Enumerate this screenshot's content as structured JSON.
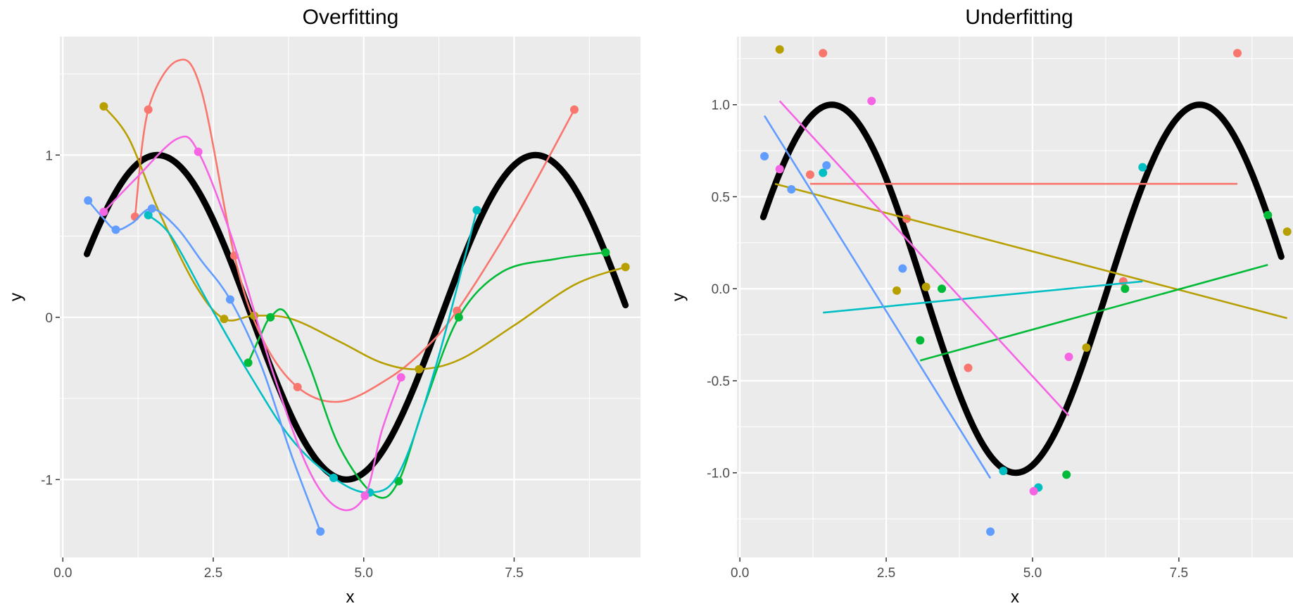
{
  "colors": {
    "panel_bg": "#EBEBEB",
    "grid": "#FFFFFF",
    "truth": "#000000",
    "series": [
      "#F8766D",
      "#B79F00",
      "#00BA38",
      "#00BFC4",
      "#619CFF",
      "#F564E3"
    ]
  },
  "chart_data": [
    {
      "type": "line",
      "title": "Overfitting",
      "xlabel": "x",
      "ylabel": "y",
      "xlim": [
        -0.05,
        9.6
      ],
      "ylim": [
        -1.48,
        1.73
      ],
      "xticks": [
        0,
        2.5,
        5,
        7.5
      ],
      "xtick_labels": [
        "0.0",
        "2.5",
        "5.0",
        "7.5"
      ],
      "yticks": [
        -1,
        0,
        1
      ],
      "ytick_labels": [
        "-1",
        "0",
        "1"
      ],
      "grid": true,
      "legend": "none",
      "truth": {
        "name": "",
        "function": "sin(x)",
        "x_range": [
          0.4,
          9.35
        ]
      },
      "series": [
        {
          "color_index": 0,
          "points": [
            [
              1.2,
              0.62
            ],
            [
              1.42,
              1.28
            ],
            [
              2.85,
              0.38
            ],
            [
              3.9,
              -0.43
            ],
            [
              6.55,
              0.04
            ],
            [
              8.5,
              1.28
            ]
          ],
          "curve": [
            [
              1.2,
              0.62
            ],
            [
              1.42,
              1.28
            ],
            [
              1.9,
              1.58
            ],
            [
              2.3,
              1.4
            ],
            [
              2.85,
              0.38
            ],
            [
              3.3,
              -0.12
            ],
            [
              3.9,
              -0.43
            ],
            [
              4.6,
              -0.52
            ],
            [
              5.4,
              -0.38
            ],
            [
              6.0,
              -0.2
            ],
            [
              6.55,
              0.04
            ],
            [
              7.5,
              0.6
            ],
            [
              8.5,
              1.28
            ]
          ]
        },
        {
          "color_index": 1,
          "points": [
            [
              0.68,
              1.3
            ],
            [
              2.68,
              -0.01
            ],
            [
              3.18,
              0.01
            ],
            [
              5.92,
              -0.32
            ],
            [
              9.35,
              0.31
            ]
          ],
          "curve": [
            [
              0.68,
              1.3
            ],
            [
              1.1,
              1.1
            ],
            [
              1.6,
              0.65
            ],
            [
              2.2,
              0.2
            ],
            [
              2.68,
              -0.01
            ],
            [
              3.18,
              0.01
            ],
            [
              3.8,
              -0.01
            ],
            [
              4.6,
              -0.15
            ],
            [
              5.3,
              -0.28
            ],
            [
              5.92,
              -0.32
            ],
            [
              6.6,
              -0.26
            ],
            [
              7.5,
              -0.05
            ],
            [
              8.5,
              0.2
            ],
            [
              9.35,
              0.31
            ]
          ]
        },
        {
          "color_index": 2,
          "points": [
            [
              3.08,
              -0.28
            ],
            [
              3.45,
              0.0
            ],
            [
              5.58,
              -1.01
            ],
            [
              6.58,
              0.0
            ],
            [
              9.02,
              0.4
            ]
          ],
          "curve": [
            [
              3.08,
              -0.28
            ],
            [
              3.3,
              -0.1
            ],
            [
              3.45,
              0.0
            ],
            [
              3.7,
              0.03
            ],
            [
              4.1,
              -0.3
            ],
            [
              4.6,
              -0.8
            ],
            [
              5.2,
              -1.1
            ],
            [
              5.58,
              -1.01
            ],
            [
              6.0,
              -0.55
            ],
            [
              6.58,
              0.0
            ],
            [
              7.3,
              0.28
            ],
            [
              8.2,
              0.36
            ],
            [
              9.02,
              0.4
            ]
          ]
        },
        {
          "color_index": 3,
          "points": [
            [
              1.42,
              0.63
            ],
            [
              4.5,
              -0.99
            ],
            [
              5.1,
              -1.08
            ],
            [
              6.88,
              0.66
            ]
          ],
          "curve": [
            [
              1.42,
              0.63
            ],
            [
              1.8,
              0.5
            ],
            [
              2.4,
              0.1
            ],
            [
              3.1,
              -0.35
            ],
            [
              3.8,
              -0.75
            ],
            [
              4.5,
              -0.99
            ],
            [
              5.1,
              -1.08
            ],
            [
              5.6,
              -0.95
            ],
            [
              6.2,
              -0.3
            ],
            [
              6.88,
              0.66
            ]
          ]
        },
        {
          "color_index": 4,
          "points": [
            [
              0.42,
              0.72
            ],
            [
              0.88,
              0.54
            ],
            [
              1.48,
              0.67
            ],
            [
              2.78,
              0.11
            ],
            [
              4.28,
              -1.32
            ]
          ],
          "curve": [
            [
              0.42,
              0.72
            ],
            [
              0.65,
              0.62
            ],
            [
              0.88,
              0.54
            ],
            [
              1.15,
              0.58
            ],
            [
              1.48,
              0.67
            ],
            [
              1.9,
              0.55
            ],
            [
              2.3,
              0.35
            ],
            [
              2.78,
              0.11
            ],
            [
              3.3,
              -0.3
            ],
            [
              3.8,
              -0.85
            ],
            [
              4.28,
              -1.32
            ]
          ]
        },
        {
          "color_index": 5,
          "points": [
            [
              0.68,
              0.65
            ],
            [
              2.25,
              1.02
            ],
            [
              5.02,
              -1.1
            ],
            [
              5.62,
              -0.37
            ]
          ],
          "curve": [
            [
              0.68,
              0.65
            ],
            [
              1.2,
              0.85
            ],
            [
              1.9,
              1.1
            ],
            [
              2.25,
              1.02
            ],
            [
              2.8,
              0.5
            ],
            [
              3.5,
              -0.35
            ],
            [
              4.1,
              -0.95
            ],
            [
              4.6,
              -1.18
            ],
            [
              5.02,
              -1.1
            ],
            [
              5.3,
              -0.7
            ],
            [
              5.62,
              -0.37
            ]
          ]
        }
      ]
    },
    {
      "type": "line",
      "title": "Underfitting",
      "xlabel": "x",
      "ylabel": "y",
      "xlim": [
        -0.05,
        9.45
      ],
      "ylim": [
        -1.46,
        1.37
      ],
      "xticks": [
        0,
        2.5,
        5,
        7.5
      ],
      "xtick_labels": [
        "0.0",
        "2.5",
        "5.0",
        "7.5"
      ],
      "yticks": [
        -1,
        -0.5,
        0,
        0.5,
        1
      ],
      "ytick_labels": [
        "-1.0",
        "-0.5",
        "0.0",
        "0.5",
        "1.0"
      ],
      "grid": true,
      "legend": "none",
      "truth": {
        "name": "",
        "function": "sin(x)",
        "x_range": [
          0.4,
          9.25
        ]
      },
      "series": [
        {
          "color_index": 0,
          "points": [
            [
              1.2,
              0.62
            ],
            [
              1.42,
              1.28
            ],
            [
              2.85,
              0.38
            ],
            [
              3.9,
              -0.43
            ],
            [
              6.55,
              0.04
            ],
            [
              8.5,
              1.28
            ]
          ],
          "fit": [
            [
              1.2,
              0.57
            ],
            [
              8.5,
              0.57
            ]
          ]
        },
        {
          "color_index": 1,
          "points": [
            [
              0.68,
              1.3
            ],
            [
              2.68,
              -0.01
            ],
            [
              3.18,
              0.01
            ],
            [
              5.92,
              -0.32
            ],
            [
              9.35,
              0.31
            ]
          ],
          "fit": [
            [
              0.6,
              0.57
            ],
            [
              9.35,
              -0.16
            ]
          ]
        },
        {
          "color_index": 2,
          "points": [
            [
              3.08,
              -0.28
            ],
            [
              3.45,
              0.0
            ],
            [
              5.58,
              -1.01
            ],
            [
              6.58,
              0.0
            ],
            [
              9.02,
              0.4
            ]
          ],
          "fit": [
            [
              3.08,
              -0.39
            ],
            [
              9.02,
              0.13
            ]
          ]
        },
        {
          "color_index": 3,
          "points": [
            [
              1.42,
              0.63
            ],
            [
              4.5,
              -0.99
            ],
            [
              5.1,
              -1.08
            ],
            [
              6.88,
              0.66
            ]
          ],
          "fit": [
            [
              1.42,
              -0.13
            ],
            [
              6.88,
              0.04
            ]
          ]
        },
        {
          "color_index": 4,
          "points": [
            [
              0.42,
              0.72
            ],
            [
              0.88,
              0.54
            ],
            [
              1.48,
              0.67
            ],
            [
              2.78,
              0.11
            ],
            [
              4.28,
              -1.32
            ]
          ],
          "fit": [
            [
              0.42,
              0.94
            ],
            [
              4.28,
              -1.03
            ]
          ]
        },
        {
          "color_index": 5,
          "points": [
            [
              0.68,
              0.65
            ],
            [
              2.25,
              1.02
            ],
            [
              5.02,
              -1.1
            ],
            [
              5.62,
              -0.37
            ]
          ],
          "fit": [
            [
              0.68,
              1.02
            ],
            [
              5.62,
              -0.69
            ]
          ]
        }
      ]
    }
  ]
}
